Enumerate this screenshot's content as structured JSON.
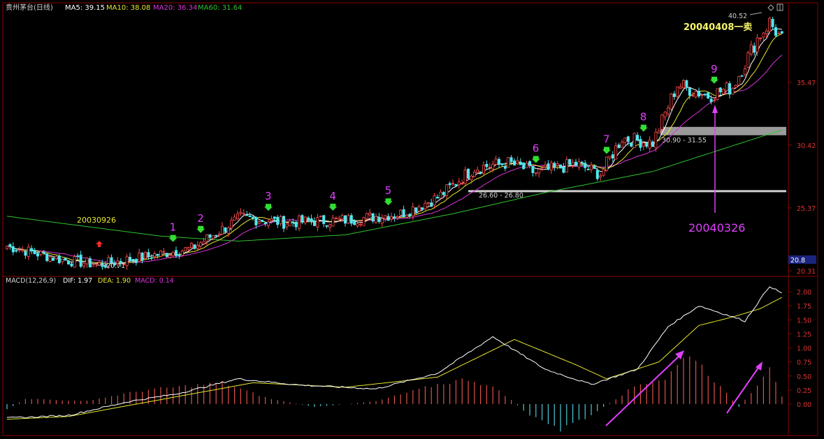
{
  "colors": {
    "background": "#000000",
    "frame": "#8b0000",
    "up_candle": "#ff4a4a",
    "down_candle": "#4ee8f0",
    "ma5": "#ffffff",
    "ma10": "#e6e632",
    "ma20": "#dc32dc",
    "ma60": "#2ec42e",
    "annotation": "#e040fb",
    "buy_arrow": "#33dd33",
    "sell_arrow": "#ff2a2a",
    "zone_gray": "#9a9a9a",
    "price_box": "#1a237e"
  },
  "header": {
    "stock": "贵州茅台(日线)",
    "ma5": "MA5: 39.15",
    "ma10": "MA10: 38.08",
    "ma20": "MA20: 36.34",
    "ma60": "MA60: 31.64"
  },
  "macd_header": {
    "title": "MACD(12,26,9)",
    "dif": "DIF: 1.97",
    "dea": "DEA: 1.90",
    "macd": "MACD: 0.14"
  },
  "annotations": {
    "date_left": "20030926",
    "date_breakout": "20040326",
    "sell_note": "20040408一卖",
    "low_label": "20.71",
    "high_label": "40.52",
    "zone_low": "26.60 - 26.80",
    "zone_high": "30.90 - 31.55",
    "price_box_value": "20.8"
  },
  "chart_data": [
    {
      "type": "candlestick",
      "title": "贵州茅台(日线)",
      "ylim": [
        20.31,
        40.52
      ],
      "y_ticks": [
        "35.47",
        "30.42",
        "25.37",
        "20.31"
      ],
      "y_tick_values": [
        35.47,
        30.42,
        25.37,
        20.31
      ],
      "key_points": [
        {
          "bar": 0,
          "price": 22.3
        },
        {
          "bar": 18,
          "price": 21.2
        },
        {
          "bar": 30,
          "price": 20.8
        },
        {
          "bar": 48,
          "price": 21.6
        },
        {
          "bar": 60,
          "price": 22.1
        },
        {
          "bar": 76,
          "price": 24.6
        },
        {
          "bar": 90,
          "price": 24.2
        },
        {
          "bar": 110,
          "price": 24.4
        },
        {
          "bar": 128,
          "price": 24.9
        },
        {
          "bar": 140,
          "price": 26.2
        },
        {
          "bar": 152,
          "price": 28.6
        },
        {
          "bar": 163,
          "price": 29.0
        },
        {
          "bar": 172,
          "price": 28.2
        },
        {
          "bar": 185,
          "price": 28.9
        },
        {
          "bar": 193,
          "price": 28.1
        },
        {
          "bar": 200,
          "price": 31.0
        },
        {
          "bar": 210,
          "price": 30.6
        },
        {
          "bar": 218,
          "price": 35.3
        },
        {
          "bar": 228,
          "price": 34.4
        },
        {
          "bar": 236,
          "price": 35.1
        },
        {
          "bar": 244,
          "price": 39.0
        },
        {
          "bar": 248,
          "price": 40.3
        },
        {
          "bar": 252,
          "price": 38.9
        }
      ],
      "ma60_points": [
        {
          "bar": 0,
          "value": 24.7
        },
        {
          "bar": 50,
          "value": 23.1
        },
        {
          "bar": 75,
          "value": 22.7
        },
        {
          "bar": 110,
          "value": 23.2
        },
        {
          "bar": 145,
          "value": 24.9
        },
        {
          "bar": 175,
          "value": 26.6
        },
        {
          "bar": 210,
          "value": 28.3
        },
        {
          "bar": 252,
          "value": 31.64
        }
      ],
      "series": [
        {
          "name": "MA5",
          "last": 39.15
        },
        {
          "name": "MA10",
          "last": 38.08
        },
        {
          "name": "MA20",
          "last": 36.34
        },
        {
          "name": "MA60",
          "last": 31.64
        }
      ],
      "zones": [
        {
          "label": "26.60 - 26.80",
          "low": 26.6,
          "high": 26.8
        },
        {
          "label": "30.90 - 31.55",
          "low": 30.9,
          "high": 31.55
        }
      ],
      "signals": {
        "buy_points": [
          {
            "label": "1",
            "bar": 54
          },
          {
            "label": "2",
            "bar": 63
          },
          {
            "label": "3",
            "bar": 85
          },
          {
            "label": "4",
            "bar": 106
          },
          {
            "label": "5",
            "bar": 124
          },
          {
            "label": "6",
            "bar": 172
          },
          {
            "label": "7",
            "bar": 195
          },
          {
            "label": "8",
            "bar": 207
          },
          {
            "label": "9",
            "bar": 230
          }
        ],
        "red_arrow_bar": 30
      }
    },
    {
      "type": "bar+line",
      "title": "MACD(12,26,9)",
      "ylim": [
        -0.3,
        2.1
      ],
      "y_ticks": [
        "2.00",
        "1.75",
        "1.50",
        "1.25",
        "1.00",
        "0.75",
        "0.50",
        "0.25",
        "0.00"
      ],
      "y_tick_values": [
        2.0,
        1.75,
        1.5,
        1.25,
        1.0,
        0.75,
        0.5,
        0.25,
        0.0
      ],
      "dif_points": [
        {
          "bar": 0,
          "value": -0.25
        },
        {
          "bar": 20,
          "value": -0.2
        },
        {
          "bar": 40,
          "value": 0.05
        },
        {
          "bar": 55,
          "value": 0.18
        },
        {
          "bar": 75,
          "value": 0.45
        },
        {
          "bar": 95,
          "value": 0.34
        },
        {
          "bar": 120,
          "value": 0.27
        },
        {
          "bar": 140,
          "value": 0.55
        },
        {
          "bar": 158,
          "value": 1.2
        },
        {
          "bar": 175,
          "value": 0.62
        },
        {
          "bar": 190,
          "value": 0.35
        },
        {
          "bar": 205,
          "value": 0.62
        },
        {
          "bar": 215,
          "value": 1.38
        },
        {
          "bar": 225,
          "value": 1.75
        },
        {
          "bar": 240,
          "value": 1.48
        },
        {
          "bar": 248,
          "value": 2.1
        },
        {
          "bar": 252,
          "value": 1.97
        }
      ],
      "dea_points": [
        {
          "bar": 0,
          "value": -0.27
        },
        {
          "bar": 20,
          "value": -0.22
        },
        {
          "bar": 40,
          "value": -0.02
        },
        {
          "bar": 60,
          "value": 0.18
        },
        {
          "bar": 80,
          "value": 0.38
        },
        {
          "bar": 110,
          "value": 0.3
        },
        {
          "bar": 140,
          "value": 0.48
        },
        {
          "bar": 165,
          "value": 1.15
        },
        {
          "bar": 185,
          "value": 0.7
        },
        {
          "bar": 195,
          "value": 0.45
        },
        {
          "bar": 212,
          "value": 0.75
        },
        {
          "bar": 225,
          "value": 1.4
        },
        {
          "bar": 236,
          "value": 1.55
        },
        {
          "bar": 245,
          "value": 1.7
        },
        {
          "bar": 252,
          "value": 1.9
        }
      ],
      "hist_points": [
        {
          "bar": 0,
          "value": -0.1
        },
        {
          "bar": 6,
          "value": 0.1
        },
        {
          "bar": 25,
          "value": 0.05
        },
        {
          "bar": 45,
          "value": 0.25
        },
        {
          "bar": 70,
          "value": 0.38
        },
        {
          "bar": 85,
          "value": 0.1
        },
        {
          "bar": 100,
          "value": -0.05
        },
        {
          "bar": 120,
          "value": 0.05
        },
        {
          "bar": 140,
          "value": 0.35
        },
        {
          "bar": 150,
          "value": 0.45
        },
        {
          "bar": 160,
          "value": 0.25
        },
        {
          "bar": 170,
          "value": -0.2
        },
        {
          "bar": 180,
          "value": -0.45
        },
        {
          "bar": 190,
          "value": -0.2
        },
        {
          "bar": 205,
          "value": 0.35
        },
        {
          "bar": 214,
          "value": 0.45
        },
        {
          "bar": 222,
          "value": 0.92
        },
        {
          "bar": 232,
          "value": 0.3
        },
        {
          "bar": 238,
          "value": -0.05
        },
        {
          "bar": 244,
          "value": 0.35
        },
        {
          "bar": 248,
          "value": 0.7
        },
        {
          "bar": 252,
          "value": 0.14
        }
      ],
      "series": [
        {
          "name": "DIF",
          "last": 1.97
        },
        {
          "name": "DEA",
          "last": 1.9
        },
        {
          "name": "MACD",
          "last": 0.14
        }
      ]
    }
  ]
}
